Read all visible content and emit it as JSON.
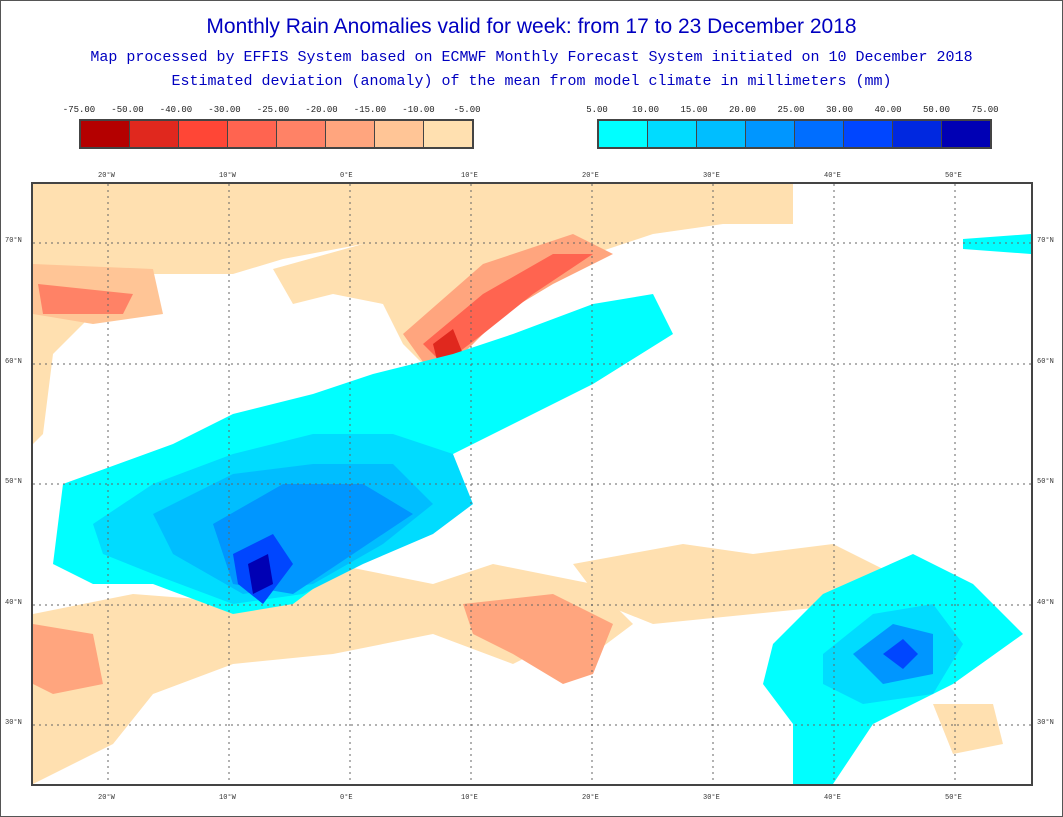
{
  "title": "Monthly Rain Anomalies valid for week: from 17 to 23 December 2018",
  "subtitle1": "Map processed by EFFIS System based on ECMWF Monthly Forecast System initiated on 10 December 2018",
  "subtitle2": "Estimated deviation (anomaly) of the mean from model climate in millimeters (mm)",
  "legend_negative": {
    "labels": [
      "-75.00",
      "-50.00",
      "-40.00",
      "-30.00",
      "-25.00",
      "-20.00",
      "-15.00",
      "-10.00",
      "-5.00"
    ],
    "colors": [
      "#b40000",
      "#e0281e",
      "#ff4636",
      "#ff6450",
      "#ff8266",
      "#ffa57e",
      "#ffc596",
      "#ffe0b0"
    ]
  },
  "legend_positive": {
    "labels": [
      "5.00",
      "10.00",
      "15.00",
      "20.00",
      "25.00",
      "30.00",
      "40.00",
      "50.00",
      "75.00"
    ],
    "colors": [
      "#00ffff",
      "#00dcff",
      "#00beff",
      "#0096ff",
      "#006eff",
      "#0046ff",
      "#0028e0",
      "#0000b4"
    ]
  },
  "lon_labels": [
    "20°W",
    "10°W",
    "0°E",
    "10°E",
    "20°E",
    "30°E",
    "40°E",
    "50°E"
  ],
  "lat_labels": [
    "70°N",
    "60°N",
    "50°N",
    "40°N",
    "30°N"
  ]
}
